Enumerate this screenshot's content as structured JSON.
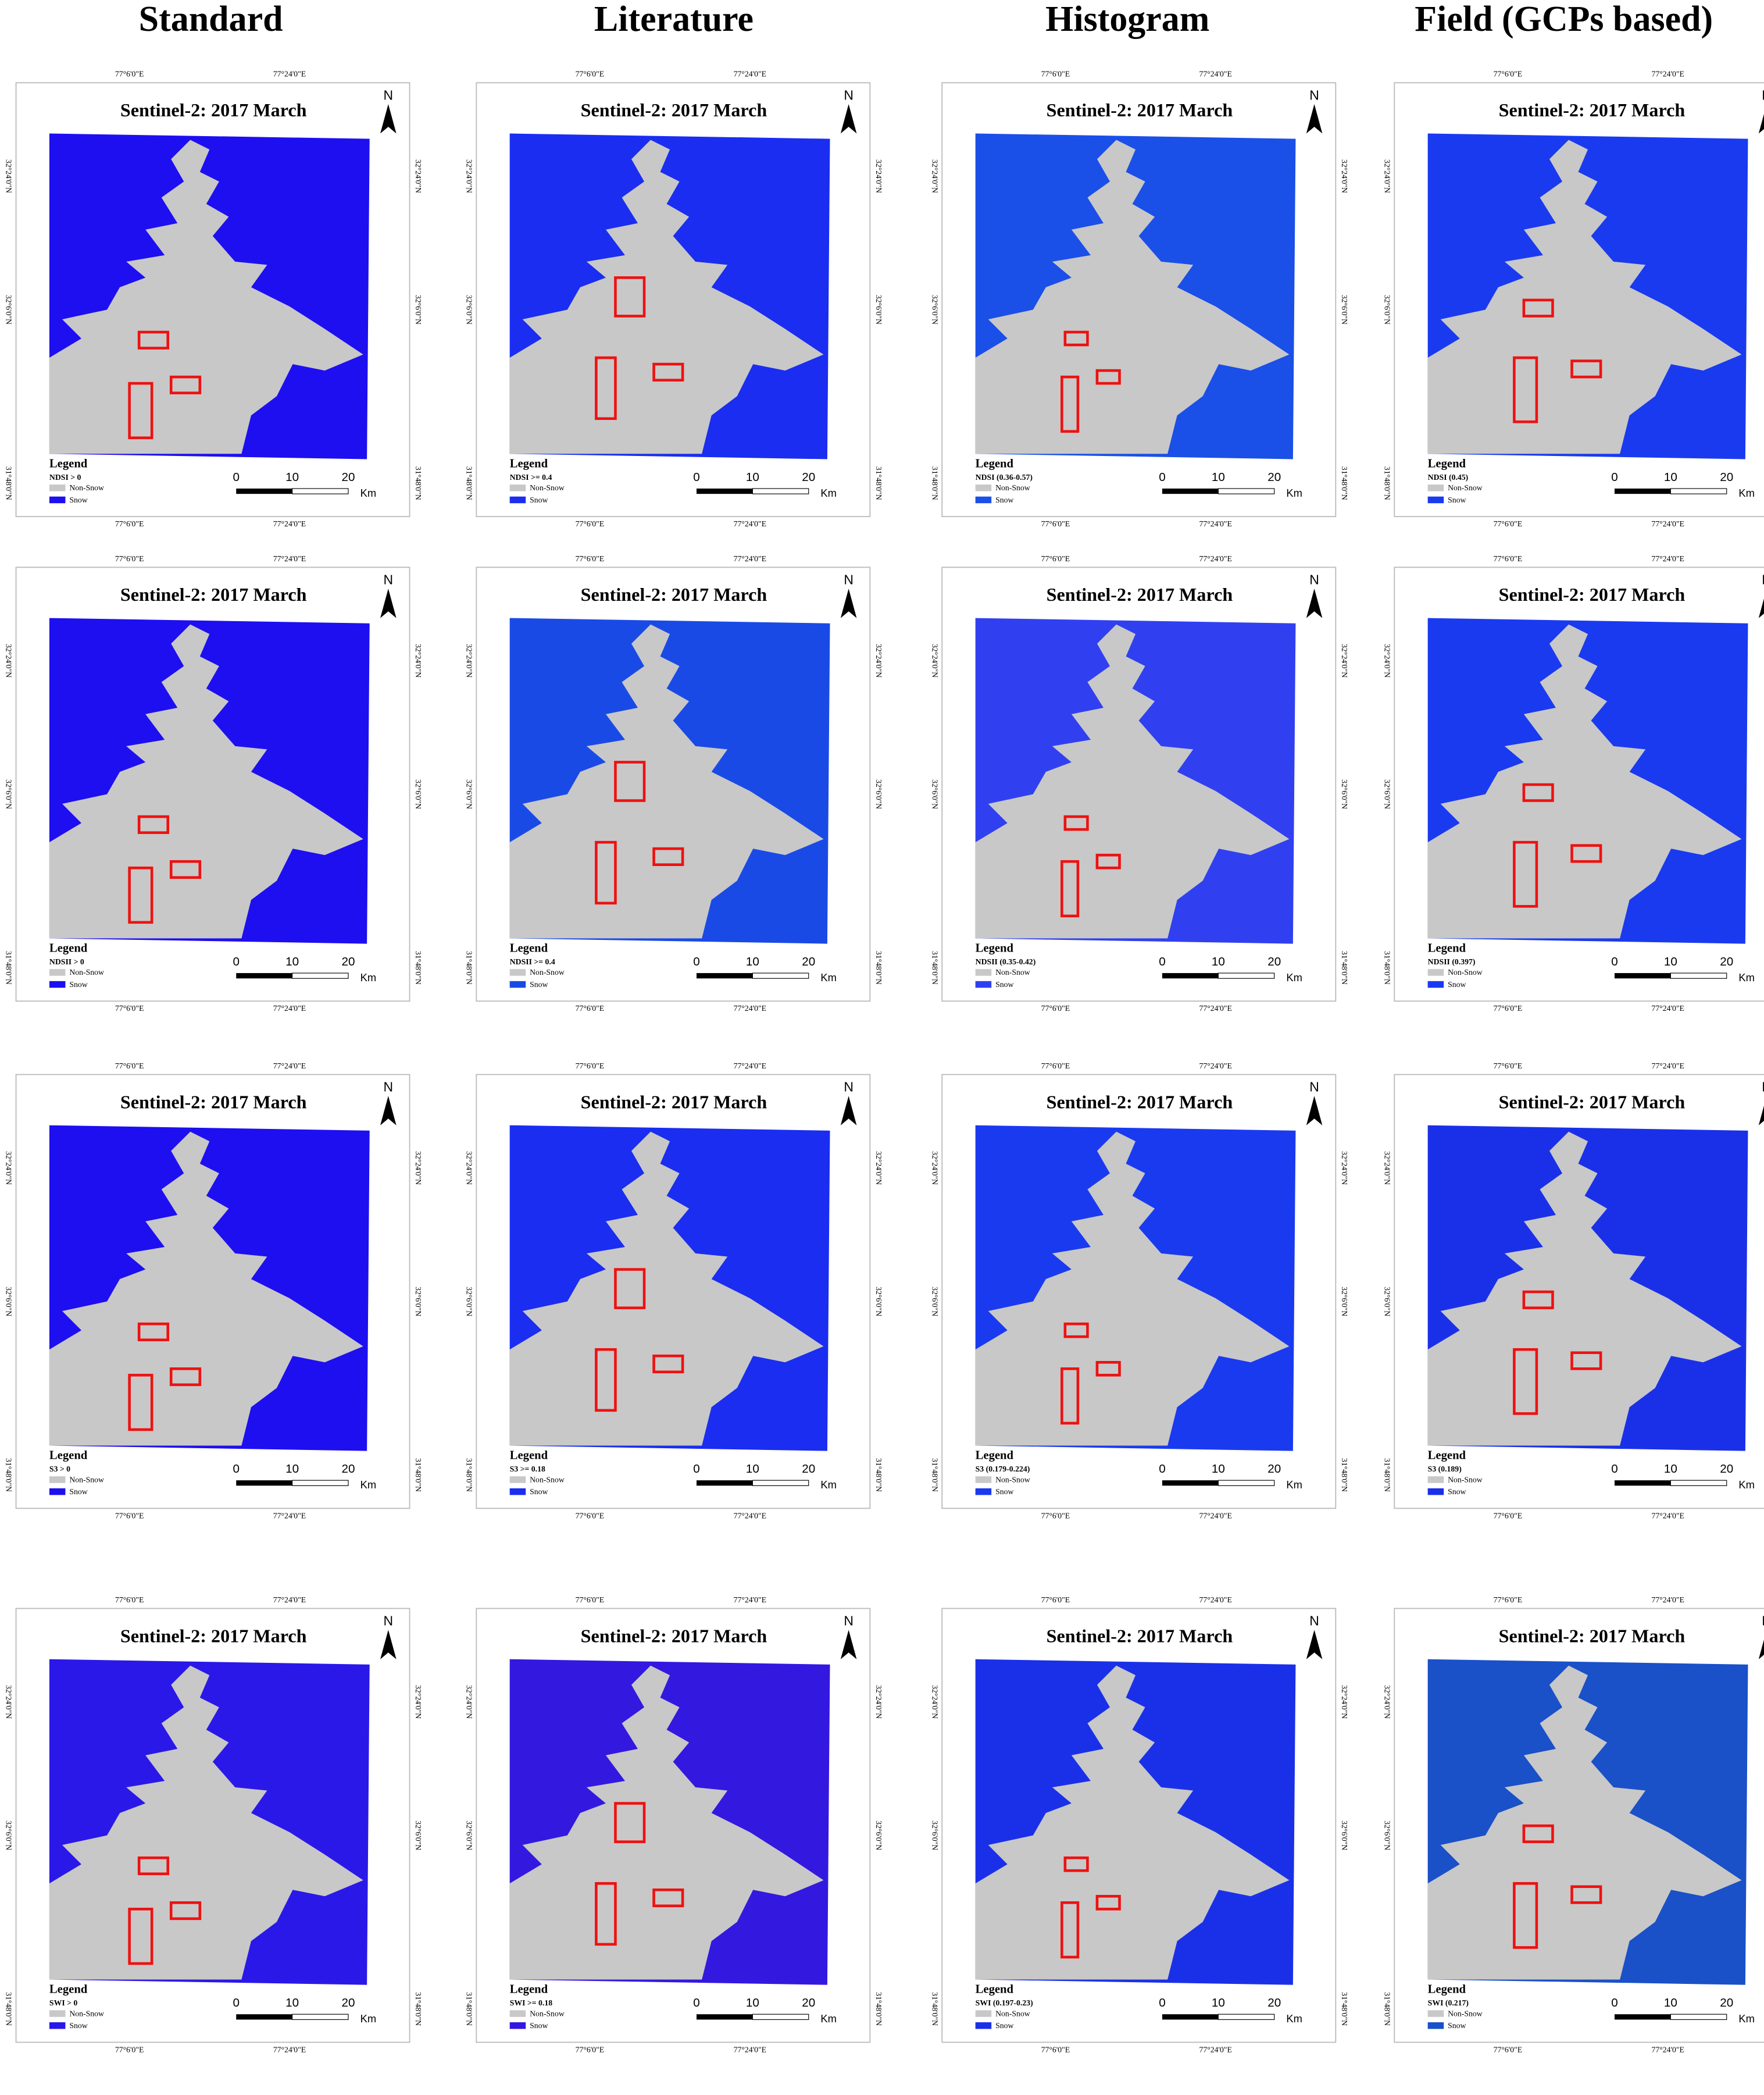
{
  "header": {
    "columns": [
      "Standard",
      "Literature",
      "Histogram",
      "Field (GCPs based)"
    ]
  },
  "map_labels": {
    "title": "Sentinel-2: 2017 March",
    "north": "N",
    "legend": "Legend",
    "non_snow": "Non-Snow",
    "snow": "Snow",
    "scale_ticks": [
      "0",
      "10",
      "20"
    ],
    "scale_unit": "Km",
    "lon": [
      "77°6'0\"E",
      "77°24'0\"E"
    ],
    "lat": [
      "32°24'0\"N",
      "32°6'0\"N",
      "31°48'0\"N"
    ]
  },
  "panels": [
    [
      {
        "threshold": "NDSI > 0",
        "color": "#1d0ff0"
      },
      {
        "threshold": "NDSI >= 0.4",
        "color": "#1a2df0"
      },
      {
        "threshold": "NDSI (0.36-0.57)",
        "color": "#1a4fe8"
      },
      {
        "threshold": "NDSI (0.45)",
        "color": "#1a3af0"
      }
    ],
    [
      {
        "threshold": "NDSII > 0",
        "color": "#1d0ff0"
      },
      {
        "threshold": "NDSII >= 0.4",
        "color": "#1a4ae6"
      },
      {
        "threshold": "NDSII (0.35-0.42)",
        "color": "#3040f0"
      },
      {
        "threshold": "NDSII (0.397)",
        "color": "#1a3af0"
      }
    ],
    [
      {
        "threshold": "S3 > 0",
        "color": "#1d0ff0"
      },
      {
        "threshold": "S3 >= 0.18",
        "color": "#1a2df0"
      },
      {
        "threshold": "S3 (0.179-0.224)",
        "color": "#1a3af0"
      },
      {
        "threshold": "S3 (0.189)",
        "color": "#1a30e8"
      }
    ],
    [
      {
        "threshold": "SWI > 0",
        "color": "#2a18e8"
      },
      {
        "threshold": "SWI >= 0.18",
        "color": "#3318e0"
      },
      {
        "threshold": "SWI (0.197-0.23)",
        "color": "#1a30e8"
      },
      {
        "threshold": "SWI (0.217)",
        "color": "#1a50c8"
      }
    ]
  ]
}
